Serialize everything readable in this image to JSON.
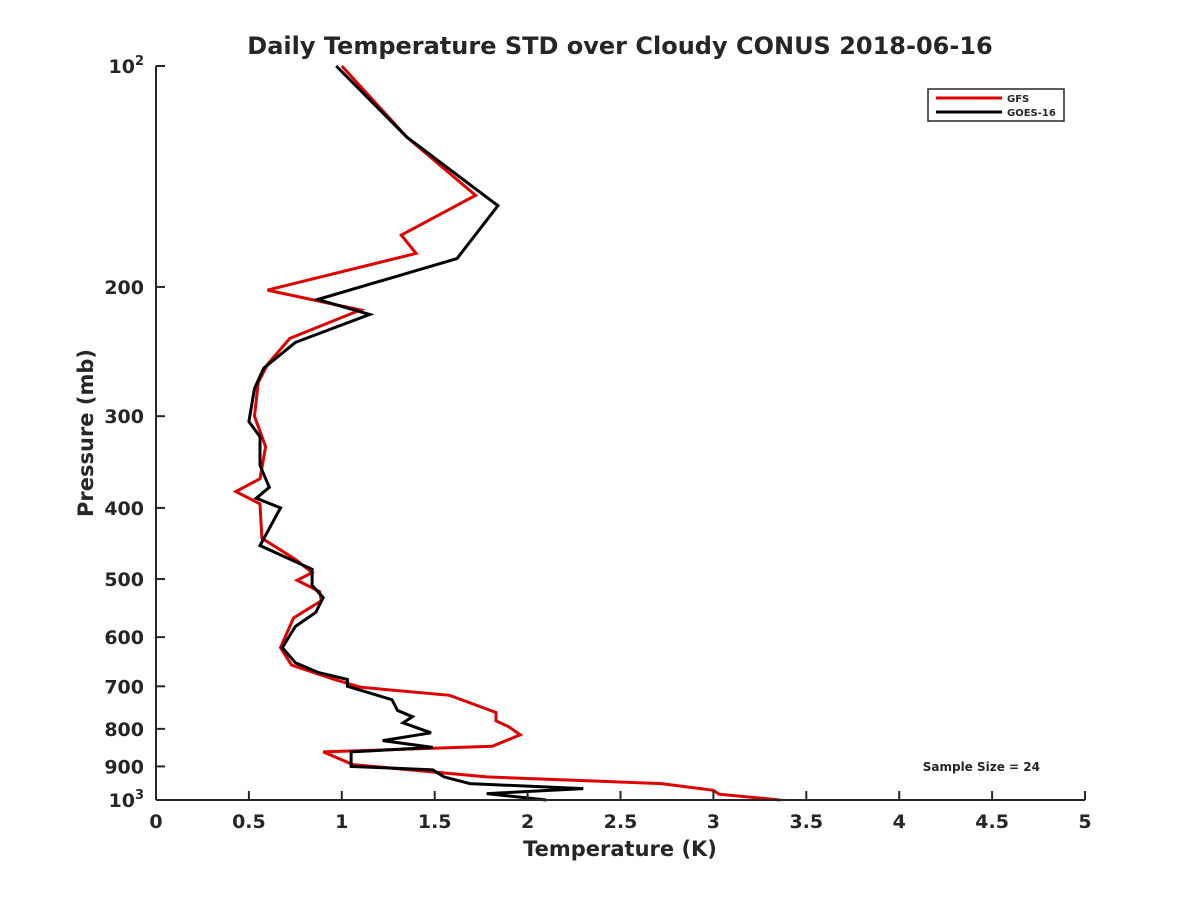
{
  "chart_data": {
    "type": "line",
    "title": "Daily Temperature STD over Cloudy CONUS 2018-06-16",
    "xlabel": "Temperature (K)",
    "ylabel": "Pressure (mb)",
    "xlim": [
      0,
      5
    ],
    "ylim": [
      100,
      1000
    ],
    "y_scale": "log",
    "y_reversed": true,
    "grid": false,
    "legend_position": "top-right",
    "x_ticks": [
      {
        "value": 0,
        "label": "0"
      },
      {
        "value": 0.5,
        "label": "0.5"
      },
      {
        "value": 1,
        "label": "1"
      },
      {
        "value": 1.5,
        "label": "1.5"
      },
      {
        "value": 2,
        "label": "2"
      },
      {
        "value": 2.5,
        "label": "2.5"
      },
      {
        "value": 3,
        "label": "3"
      },
      {
        "value": 3.5,
        "label": "3.5"
      },
      {
        "value": 4,
        "label": "4"
      },
      {
        "value": 4.5,
        "label": "4.5"
      },
      {
        "value": 5,
        "label": "5"
      }
    ],
    "y_ticks": [
      {
        "value": 100,
        "label": "10",
        "sup": "2"
      },
      {
        "value": 200,
        "label": "200"
      },
      {
        "value": 300,
        "label": "300"
      },
      {
        "value": 400,
        "label": "400"
      },
      {
        "value": 500,
        "label": "500"
      },
      {
        "value": 600,
        "label": "600"
      },
      {
        "value": 700,
        "label": "700"
      },
      {
        "value": 800,
        "label": "800"
      },
      {
        "value": 900,
        "label": "900"
      },
      {
        "value": 1000,
        "label": "10",
        "sup": "3"
      }
    ],
    "annotation": "Sample Size = 24",
    "series": [
      {
        "name": "GFS",
        "color": "#e00000",
        "points": [
          [
            1.0,
            100
          ],
          [
            1.35,
            125
          ],
          [
            1.72,
            150
          ],
          [
            1.32,
            170
          ],
          [
            1.4,
            180
          ],
          [
            0.6,
            202
          ],
          [
            1.1,
            215
          ],
          [
            0.72,
            235
          ],
          [
            0.6,
            255
          ],
          [
            0.55,
            270
          ],
          [
            0.53,
            300
          ],
          [
            0.59,
            330
          ],
          [
            0.56,
            365
          ],
          [
            0.43,
            380
          ],
          [
            0.56,
            395
          ],
          [
            0.57,
            440
          ],
          [
            0.75,
            470
          ],
          [
            0.84,
            490
          ],
          [
            0.76,
            502
          ],
          [
            0.88,
            520
          ],
          [
            0.89,
            535
          ],
          [
            0.74,
            565
          ],
          [
            0.67,
            620
          ],
          [
            0.73,
            655
          ],
          [
            0.96,
            685
          ],
          [
            1.1,
            702
          ],
          [
            1.58,
            720
          ],
          [
            1.83,
            760
          ],
          [
            1.83,
            780
          ],
          [
            1.9,
            795
          ],
          [
            1.96,
            815
          ],
          [
            1.81,
            845
          ],
          [
            0.9,
            860
          ],
          [
            1.06,
            895
          ],
          [
            1.78,
            930
          ],
          [
            2.72,
            950
          ],
          [
            3.0,
            970
          ],
          [
            3.03,
            982
          ],
          [
            3.36,
            1000
          ]
        ]
      },
      {
        "name": "GOES-16",
        "color": "#000000",
        "points": [
          [
            0.97,
            100
          ],
          [
            1.35,
            125
          ],
          [
            1.84,
            155
          ],
          [
            1.62,
            183
          ],
          [
            0.87,
            208
          ],
          [
            1.15,
            218
          ],
          [
            0.75,
            238
          ],
          [
            0.58,
            258
          ],
          [
            0.53,
            275
          ],
          [
            0.5,
            305
          ],
          [
            0.56,
            320
          ],
          [
            0.56,
            350
          ],
          [
            0.61,
            375
          ],
          [
            0.54,
            388
          ],
          [
            0.67,
            400
          ],
          [
            0.56,
            450
          ],
          [
            0.84,
            485
          ],
          [
            0.84,
            510
          ],
          [
            0.9,
            530
          ],
          [
            0.86,
            555
          ],
          [
            0.75,
            580
          ],
          [
            0.68,
            620
          ],
          [
            0.75,
            650
          ],
          [
            0.87,
            670
          ],
          [
            1.03,
            685
          ],
          [
            1.03,
            700
          ],
          [
            1.27,
            730
          ],
          [
            1.3,
            755
          ],
          [
            1.38,
            770
          ],
          [
            1.33,
            785
          ],
          [
            1.48,
            810
          ],
          [
            1.22,
            830
          ],
          [
            1.49,
            848
          ],
          [
            1.05,
            860
          ],
          [
            1.05,
            900
          ],
          [
            1.49,
            910
          ],
          [
            1.55,
            930
          ],
          [
            1.69,
            950
          ],
          [
            2.3,
            965
          ],
          [
            1.78,
            980
          ],
          [
            2.1,
            1000
          ]
        ]
      }
    ]
  }
}
